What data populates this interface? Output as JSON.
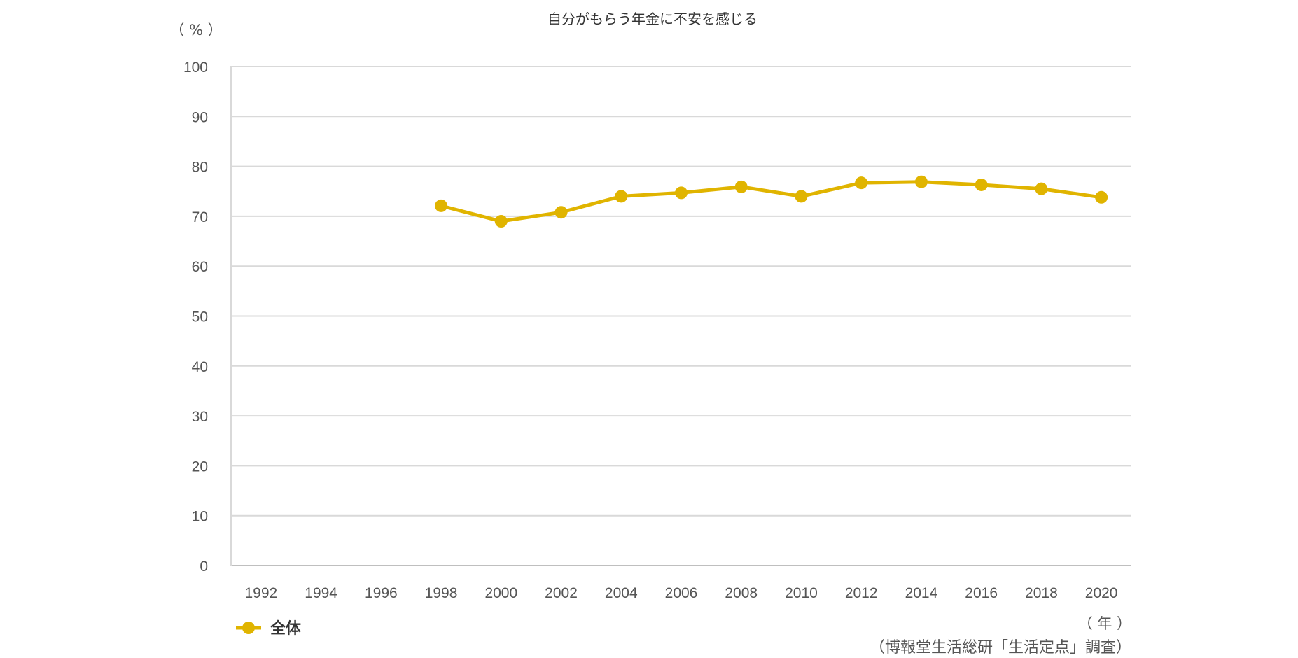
{
  "chart_data": {
    "type": "line",
    "title": "自分がもらう年金に不安を感じる",
    "ylabel": "（ % ）",
    "xlabel": "（ 年 ）",
    "source": "（博報堂生活総研「生活定点」調査）",
    "ylim": [
      0,
      100
    ],
    "yticks": [
      "0",
      "10",
      "20",
      "30",
      "40",
      "50",
      "60",
      "70",
      "80",
      "90",
      "100"
    ],
    "categories": [
      "1992",
      "1994",
      "1996",
      "1998",
      "2000",
      "2002",
      "2004",
      "2006",
      "2008",
      "2010",
      "2012",
      "2014",
      "2016",
      "2018",
      "2020"
    ],
    "grid": true,
    "legend_position": "bottom-left",
    "series": [
      {
        "name": "全体",
        "color": "#E0B400",
        "values": [
          null,
          null,
          null,
          72.1,
          69.0,
          70.8,
          74.0,
          74.7,
          75.9,
          74.0,
          76.7,
          76.9,
          76.3,
          75.5,
          73.8
        ]
      }
    ]
  }
}
